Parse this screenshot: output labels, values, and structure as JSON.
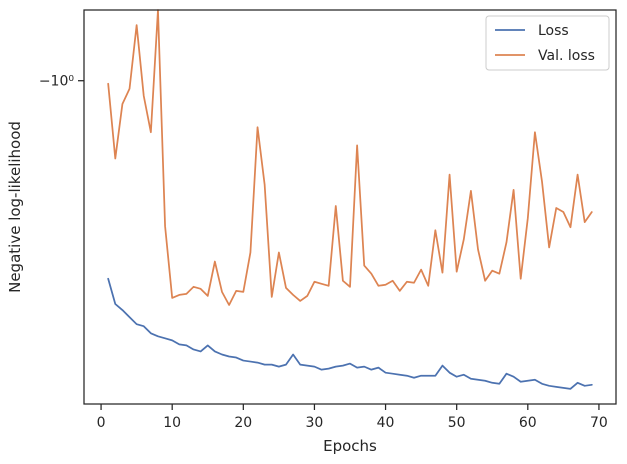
{
  "chart_data": {
    "type": "line",
    "xlabel": "Epochs",
    "ylabel": "Negative log-likelihood",
    "xlim": [
      -2.4,
      72.4
    ],
    "ylim": [
      -1.32,
      -0.93
    ],
    "y_scale": "symlog",
    "x_ticks": [
      0,
      10,
      20,
      30,
      40,
      50,
      60,
      70
    ],
    "x_tick_labels": [
      "0",
      "10",
      "20",
      "30",
      "40",
      "50",
      "60",
      "70"
    ],
    "y_tick_values": [
      -1.0
    ],
    "y_tick_labels": [
      "−10⁰"
    ],
    "grid": false,
    "legend_position": "top-right",
    "x": [
      1,
      2,
      3,
      4,
      5,
      6,
      7,
      8,
      9,
      10,
      11,
      12,
      13,
      14,
      15,
      16,
      17,
      18,
      19,
      20,
      21,
      22,
      23,
      24,
      25,
      26,
      27,
      28,
      29,
      30,
      31,
      32,
      33,
      34,
      35,
      36,
      37,
      38,
      39,
      40,
      41,
      42,
      43,
      44,
      45,
      46,
      47,
      48,
      49,
      50,
      51,
      52,
      53,
      54,
      55,
      56,
      57,
      58,
      59,
      60,
      61,
      62,
      63,
      64,
      65,
      66,
      67,
      68,
      69
    ],
    "series": [
      {
        "name": "Loss",
        "color": "#4c72b0",
        "values": [
          -1.196,
          -1.221,
          -1.227,
          -1.234,
          -1.241,
          -1.243,
          -1.25,
          -1.253,
          -1.255,
          -1.257,
          -1.261,
          -1.262,
          -1.266,
          -1.268,
          -1.262,
          -1.268,
          -1.271,
          -1.273,
          -1.274,
          -1.277,
          -1.278,
          -1.279,
          -1.281,
          -1.281,
          -1.283,
          -1.281,
          -1.271,
          -1.281,
          -1.282,
          -1.283,
          -1.286,
          -1.285,
          -1.283,
          -1.282,
          -1.28,
          -1.284,
          -1.283,
          -1.286,
          -1.284,
          -1.289,
          -1.29,
          -1.291,
          -1.292,
          -1.294,
          -1.292,
          -1.292,
          -1.292,
          -1.282,
          -1.289,
          -1.293,
          -1.291,
          -1.295,
          -1.296,
          -1.297,
          -1.299,
          -1.3,
          -1.29,
          -1.293,
          -1.298,
          -1.297,
          -1.296,
          -1.3,
          -1.302,
          -1.303,
          -1.304,
          -1.305,
          -1.299,
          -1.302,
          -1.301
        ]
      },
      {
        "name": "Val. loss",
        "color": "#dd8452",
        "values": [
          -1.003,
          -1.077,
          -1.023,
          -1.008,
          -0.945,
          -1.015,
          -1.051,
          -0.93,
          -1.144,
          -1.215,
          -1.212,
          -1.211,
          -1.204,
          -1.206,
          -1.213,
          -1.179,
          -1.209,
          -1.222,
          -1.208,
          -1.209,
          -1.17,
          -1.046,
          -1.103,
          -1.214,
          -1.17,
          -1.205,
          -1.212,
          -1.218,
          -1.213,
          -1.199,
          -1.201,
          -1.203,
          -1.124,
          -1.198,
          -1.204,
          -1.064,
          -1.183,
          -1.191,
          -1.203,
          -1.202,
          -1.198,
          -1.208,
          -1.199,
          -1.2,
          -1.187,
          -1.203,
          -1.148,
          -1.19,
          -1.093,
          -1.189,
          -1.157,
          -1.109,
          -1.167,
          -1.198,
          -1.188,
          -1.191,
          -1.16,
          -1.108,
          -1.196,
          -1.136,
          -1.051,
          -1.1,
          -1.165,
          -1.126,
          -1.13,
          -1.145,
          -1.093,
          -1.14,
          -1.13
        ]
      }
    ]
  }
}
